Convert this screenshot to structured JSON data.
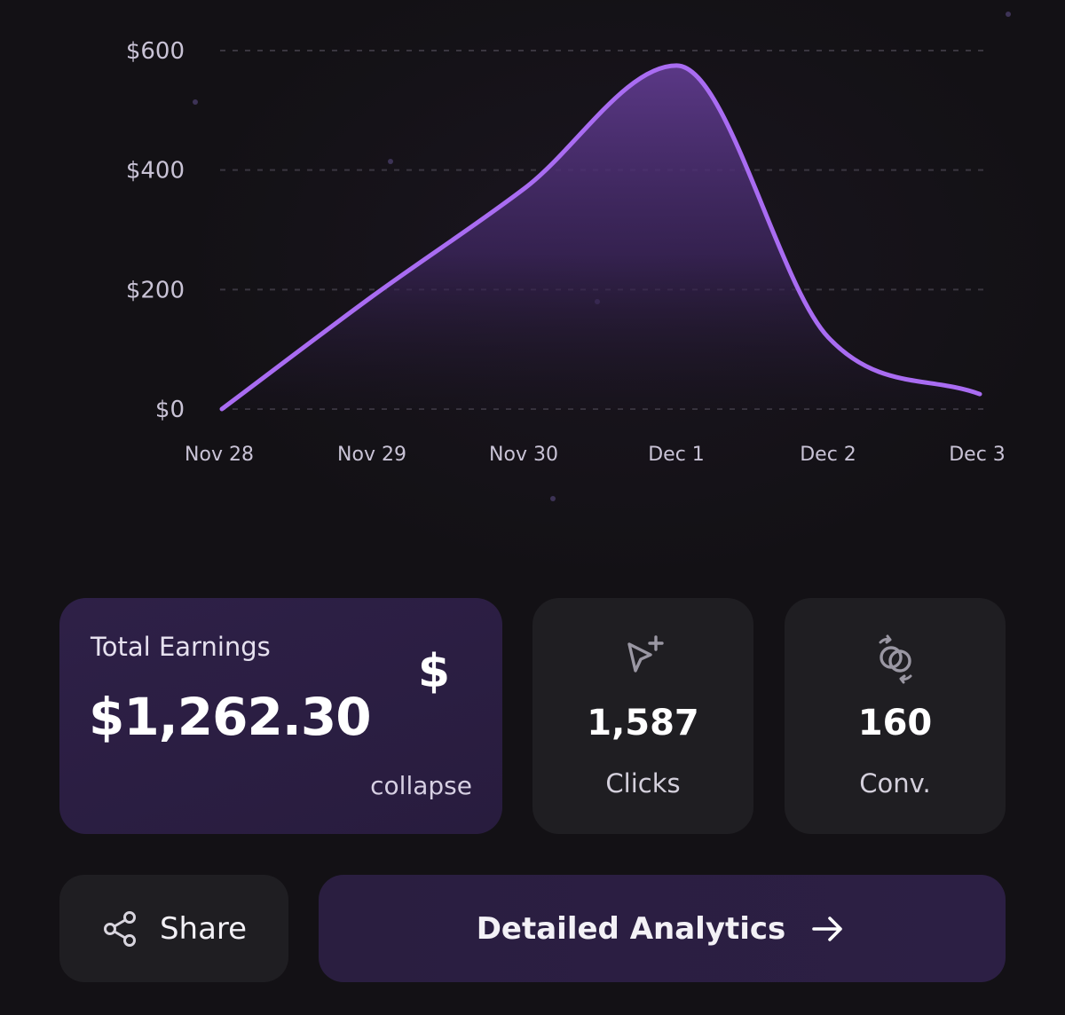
{
  "chart_data": {
    "type": "area",
    "categories": [
      "Nov 28",
      "Nov 29",
      "Nov 30",
      "Dec 1",
      "Dec 2",
      "Dec 3"
    ],
    "values": [
      0,
      190,
      370,
      575,
      120,
      25
    ],
    "y_ticks": [
      "$0",
      "$200",
      "$400",
      "$600"
    ],
    "y_tick_values": [
      0,
      200,
      400,
      600
    ],
    "ylim": [
      0,
      600
    ],
    "grid": true,
    "line_color": "#a96cf2",
    "fill_color": "#5e3a8c"
  },
  "earnings": {
    "label": "Total Earnings",
    "value": "$1,262.30",
    "icon": "dollar-icon",
    "icon_glyph": "$",
    "collapse_label": "collapse"
  },
  "stats": {
    "clicks": {
      "value": "1,587",
      "label": "Clicks",
      "icon": "cursor-click-icon"
    },
    "conversions": {
      "value": "160",
      "label": "Conv.",
      "icon": "conversion-icon"
    }
  },
  "actions": {
    "share_label": "Share",
    "share_icon": "share-icon",
    "analytics_label": "Detailed Analytics",
    "analytics_icon": "arrow-right-icon"
  },
  "colors": {
    "background": "#131115",
    "accent": "#a96cf2",
    "card_dark": "#1f1e22",
    "card_purple": "#2b1e42"
  }
}
